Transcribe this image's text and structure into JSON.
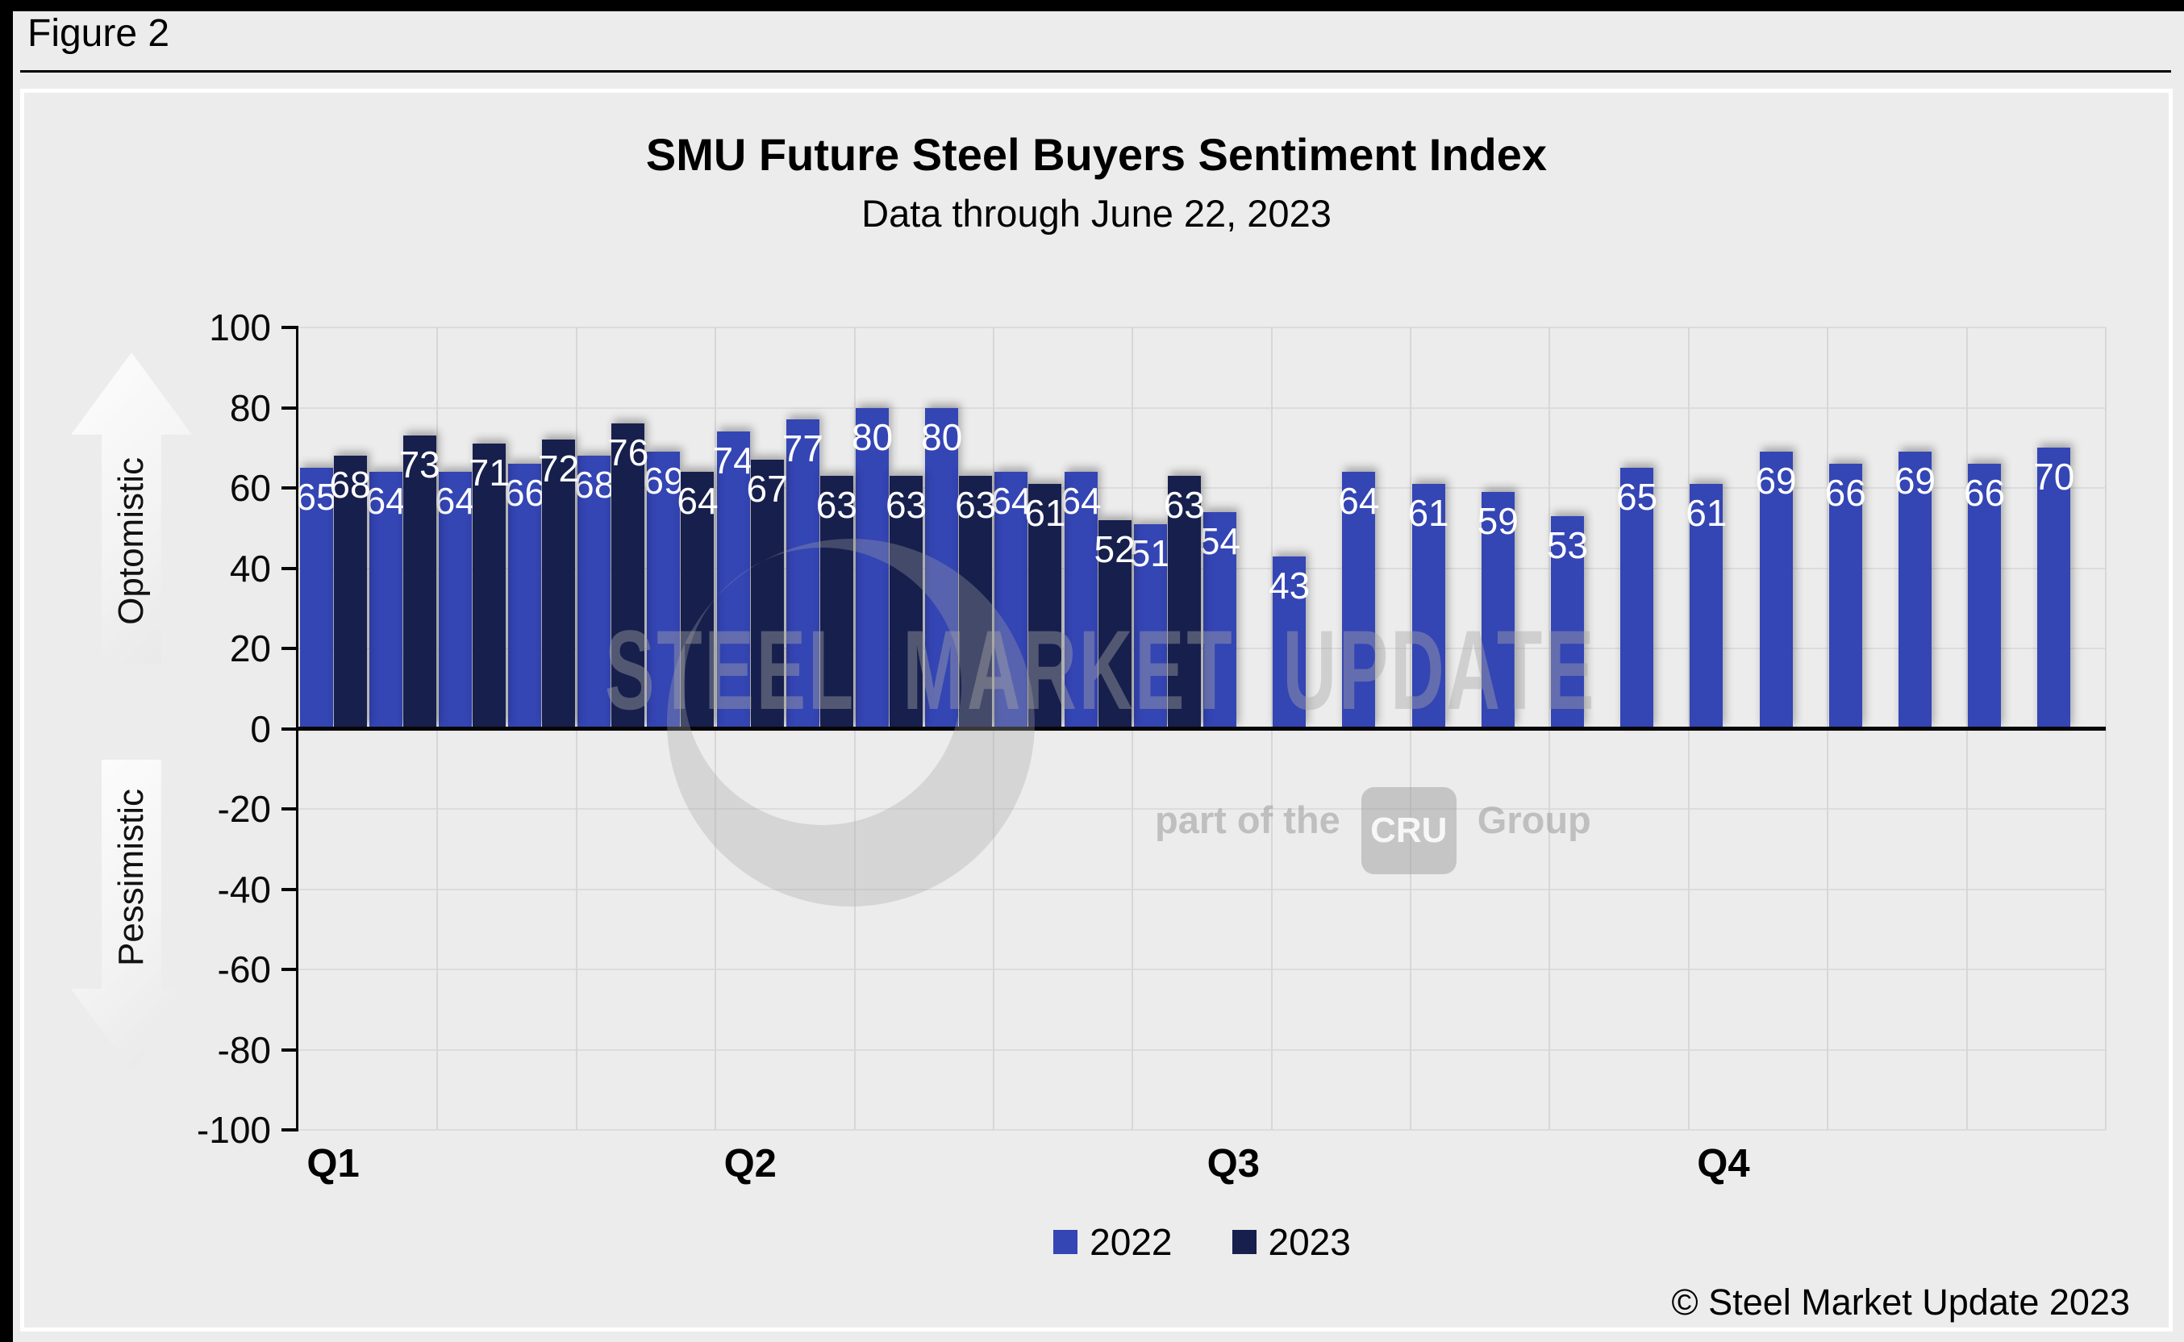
{
  "figure": {
    "label": "Figure 2"
  },
  "chart": {
    "title": "SMU Future Steel Buyers Sentiment Index",
    "subtitle": "Data through June 22, 2023",
    "left_axis_top_label": "Optomistic",
    "left_axis_bottom_label": "Pessimistic"
  },
  "chart_data": {
    "type": "bar",
    "title": "SMU Future Steel Buyers Sentiment Index",
    "subtitle": "Data through June 22, 2023",
    "num_periods": 26,
    "ylim": [
      -100,
      100
    ],
    "ytick_step": 20,
    "grid": true,
    "legend_position": "bottom",
    "x_axis_labels": [
      {
        "label": "Q1",
        "slot": 0.5
      },
      {
        "label": "Q2",
        "slot": 6.5
      },
      {
        "label": "Q3",
        "slot": 13.45
      },
      {
        "label": "Q4",
        "slot": 20.5
      }
    ],
    "series": [
      {
        "name": "2022",
        "color": "#3445b4",
        "values": [
          65,
          64,
          64,
          66,
          68,
          69,
          74,
          77,
          80,
          80,
          64,
          64,
          51,
          54,
          43,
          64,
          61,
          59,
          53,
          65,
          61,
          69,
          66,
          69,
          66,
          70
        ]
      },
      {
        "name": "2023",
        "color": "#171f4d",
        "values": [
          68,
          73,
          71,
          72,
          76,
          64,
          67,
          63,
          63,
          63,
          61,
          52,
          63,
          null,
          null,
          null,
          null,
          null,
          null,
          null,
          null,
          null,
          null,
          null,
          null,
          null
        ]
      }
    ]
  },
  "watermark": {
    "line1": "STEEL MARKET UPDATE",
    "line2_prefix": "part of the",
    "line2_box": "CRU",
    "line2_suffix": "Group"
  },
  "footer": {
    "copyright": "© Steel Market Update 2023"
  }
}
